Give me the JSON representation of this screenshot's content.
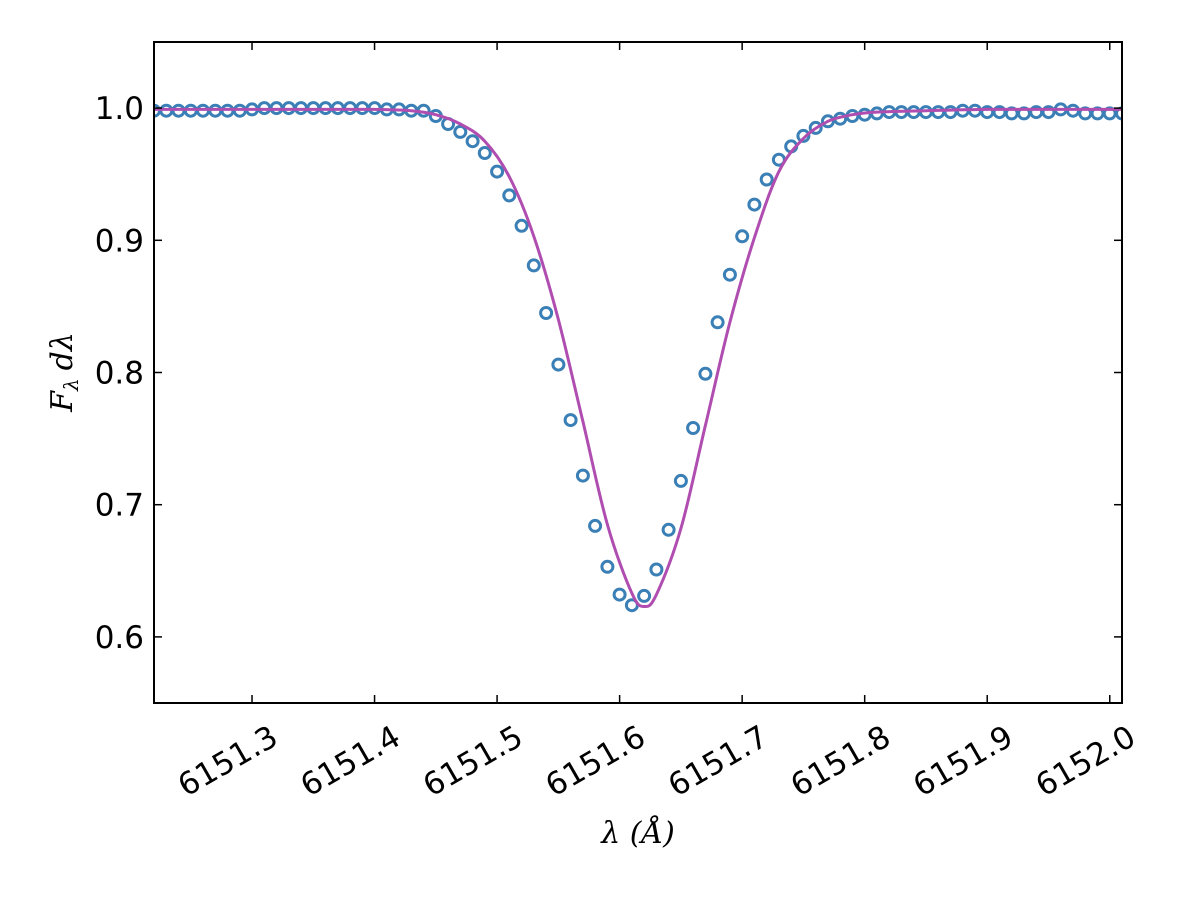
{
  "chart_data": {
    "type": "scatter",
    "title": "",
    "xlabel": "λ (Å)",
    "ylabel": "F_λ dλ",
    "ylabel_main": "F",
    "ylabel_sub": "λ",
    "ylabel_tail": "dλ",
    "xlim": [
      6151.22,
      6152.01
    ],
    "ylim": [
      0.55,
      1.05
    ],
    "x_ticks": [
      6151.3,
      6151.4,
      6151.5,
      6151.6,
      6151.7,
      6151.8,
      6151.9,
      6152.0
    ],
    "x_tick_labels": [
      "6151.3",
      "6151.4",
      "6151.5",
      "6151.6",
      "6151.7",
      "6151.8",
      "6151.9",
      "6152.0"
    ],
    "y_ticks": [
      0.6,
      0.7,
      0.8,
      0.9,
      1.0
    ],
    "y_tick_labels": [
      "0.6",
      "0.7",
      "0.8",
      "0.9",
      "1.0"
    ],
    "grid": false,
    "legend": "none",
    "colors": {
      "observed": "#3a7fb5",
      "model": "#b04db0"
    },
    "series": [
      {
        "kind": "markers",
        "x": [
          6151.22,
          6151.23,
          6151.24,
          6151.25,
          6151.26,
          6151.27,
          6151.28,
          6151.29,
          6151.3,
          6151.31,
          6151.32,
          6151.33,
          6151.34,
          6151.35,
          6151.36,
          6151.37,
          6151.38,
          6151.39,
          6151.4,
          6151.41,
          6151.42,
          6151.43,
          6151.44,
          6151.45,
          6151.46,
          6151.47,
          6151.48,
          6151.49,
          6151.5,
          6151.51,
          6151.52,
          6151.53,
          6151.54,
          6151.55,
          6151.56,
          6151.57,
          6151.58,
          6151.59,
          6151.6,
          6151.61,
          6151.62,
          6151.63,
          6151.64,
          6151.65,
          6151.66,
          6151.67,
          6151.68,
          6151.69,
          6151.7,
          6151.71,
          6151.72,
          6151.73,
          6151.74,
          6151.75,
          6151.76,
          6151.77,
          6151.78,
          6151.79,
          6151.8,
          6151.81,
          6151.82,
          6151.83,
          6151.84,
          6151.85,
          6151.86,
          6151.87,
          6151.88,
          6151.89,
          6151.9,
          6151.91,
          6151.92,
          6151.93,
          6151.94,
          6151.95,
          6151.96,
          6151.97,
          6151.98,
          6151.99,
          6152.0,
          6152.01
        ],
        "y": [
          0.998,
          0.998,
          0.998,
          0.998,
          0.998,
          0.998,
          0.998,
          0.998,
          0.999,
          1.0,
          1.0,
          1.0,
          1.0,
          1.0,
          1.0,
          1.0,
          1.0,
          1.0,
          1.0,
          0.999,
          0.999,
          0.998,
          0.998,
          0.994,
          0.988,
          0.982,
          0.975,
          0.966,
          0.952,
          0.934,
          0.911,
          0.881,
          0.845,
          0.806,
          0.764,
          0.722,
          0.684,
          0.653,
          0.632,
          0.624,
          0.631,
          0.651,
          0.681,
          0.718,
          0.758,
          0.799,
          0.838,
          0.874,
          0.903,
          0.927,
          0.946,
          0.961,
          0.971,
          0.979,
          0.985,
          0.99,
          0.992,
          0.994,
          0.995,
          0.996,
          0.997,
          0.997,
          0.997,
          0.997,
          0.997,
          0.997,
          0.998,
          0.998,
          0.997,
          0.997,
          0.996,
          0.996,
          0.997,
          0.997,
          0.999,
          0.998,
          0.996,
          0.996,
          0.996,
          0.996
        ]
      },
      {
        "kind": "line",
        "x": [
          6151.22,
          6151.25,
          6151.3,
          6151.35,
          6151.4,
          6151.43,
          6151.45,
          6151.47,
          6151.49,
          6151.51,
          6151.53,
          6151.55,
          6151.57,
          6151.59,
          6151.61,
          6151.62,
          6151.63,
          6151.65,
          6151.67,
          6151.69,
          6151.71,
          6151.73,
          6151.75,
          6151.77,
          6151.79,
          6151.81,
          6151.85,
          6151.9,
          6151.95,
          6152.01
        ],
        "y": [
          0.999,
          0.999,
          0.999,
          0.999,
          0.999,
          0.998,
          0.995,
          0.988,
          0.975,
          0.948,
          0.903,
          0.84,
          0.763,
          0.685,
          0.633,
          0.623,
          0.632,
          0.682,
          0.76,
          0.838,
          0.902,
          0.952,
          0.977,
          0.99,
          0.995,
          0.997,
          0.998,
          0.999,
          0.999,
          0.999
        ]
      }
    ]
  }
}
